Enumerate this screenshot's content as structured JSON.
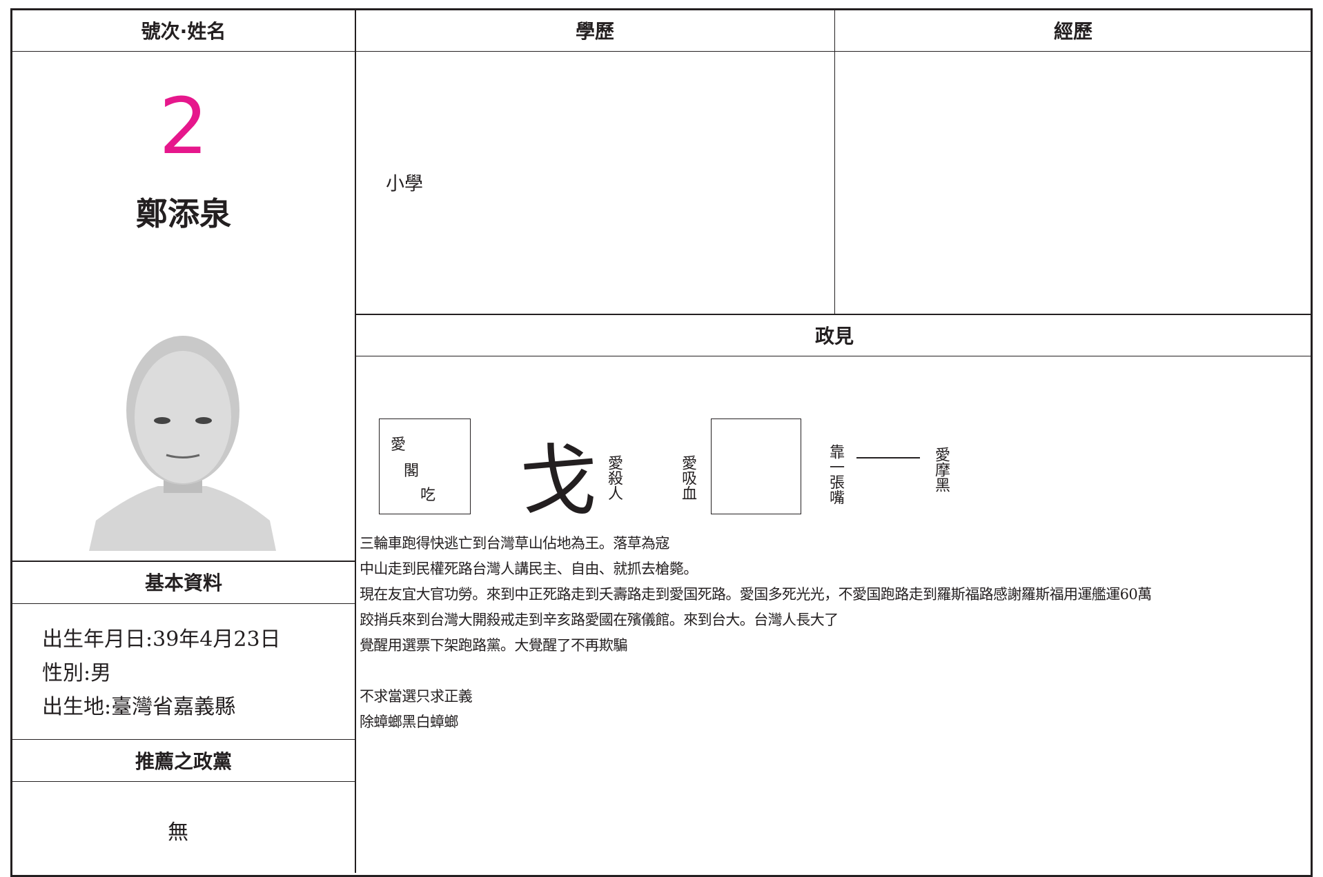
{
  "headers": {
    "number_name": "號次·姓名",
    "education": "學歷",
    "experience": "經歷",
    "platform": "政見",
    "basic_info": "基本資料",
    "party": "推薦之政黨"
  },
  "candidate": {
    "number": 2,
    "name": "鄭添泉"
  },
  "basic_info": [
    "出生年月日:39年4月23日",
    "性別:男",
    "出生地:臺灣省嘉義縣"
  ],
  "party": "無",
  "education": "小學",
  "platform": {
    "diagram": {
      "box_text": [
        "愛",
        "閣",
        "吃"
      ],
      "big_char": "戈",
      "vertical_1": "愛殺人",
      "vertical_2": "愛吸血",
      "vertical_3": "靠一張嘴",
      "vertical_4": "愛摩黑"
    },
    "paragraphs": [
      [
        "三輪車跑得快逃亡到台灣草山佔地為王。落草為寇",
        "中山走到民權死路台灣人講民主、自由、就抓去槍斃。",
        "現在友宜大官功勞。來到中正死路走到夭壽路走到愛国死路。愛国多死光光，不愛国跑路走到羅斯福路感謝羅斯福用運艦運60萬",
        "跤捎兵來到台灣大開殺戒走到辛亥路愛國在殯儀館。來到台大。台灣人長大了",
        "覺醒用選票下架跑路黨。大覺醒了不再欺騙"
      ],
      [
        "不求當選只求正義",
        "除蟑螂黑白蟑螂"
      ]
    ]
  }
}
